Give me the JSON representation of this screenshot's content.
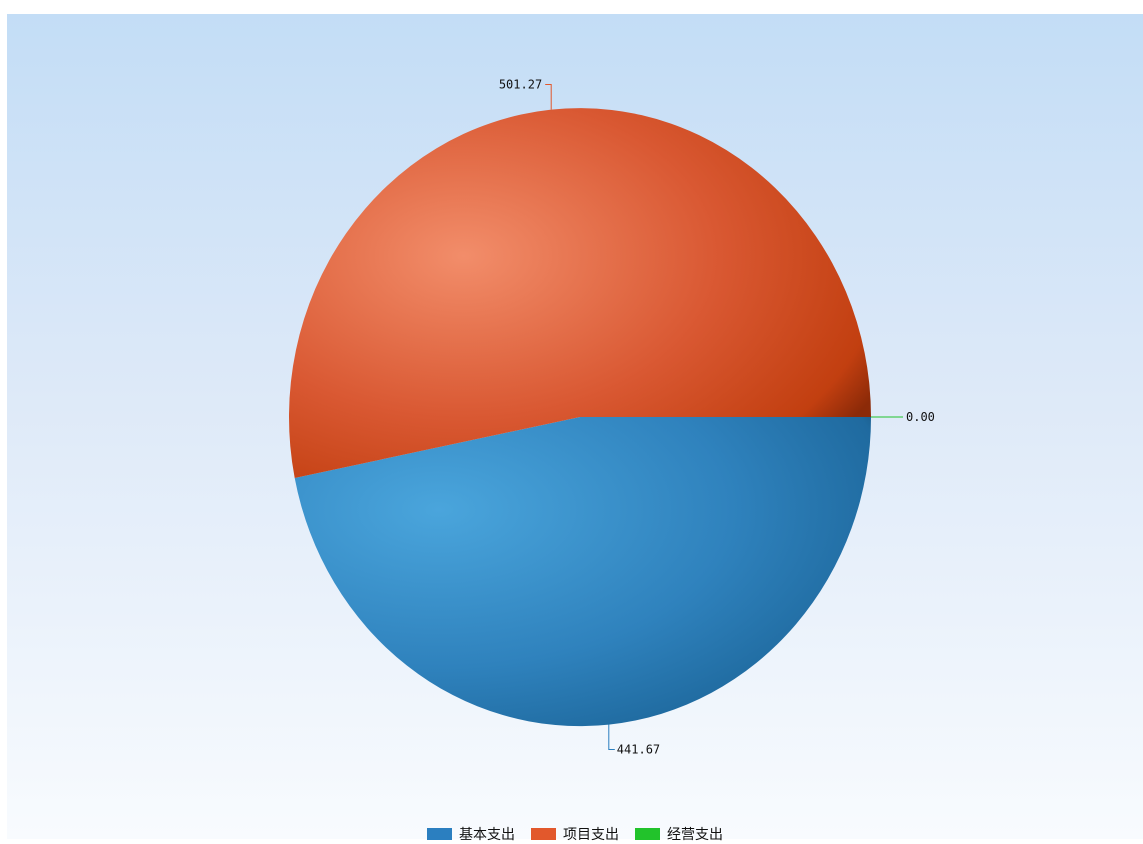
{
  "chart_data": {
    "type": "pie",
    "categories": [
      "基本支出",
      "项目支出",
      "经营支出"
    ],
    "values": [
      441.67,
      501.27,
      0.0
    ],
    "value_labels": [
      "441.67",
      "501.27",
      "0.00"
    ],
    "colors": [
      "#2b7fc0",
      "#e2582c",
      "#22c32b"
    ],
    "legend": "bottom",
    "title": ""
  }
}
